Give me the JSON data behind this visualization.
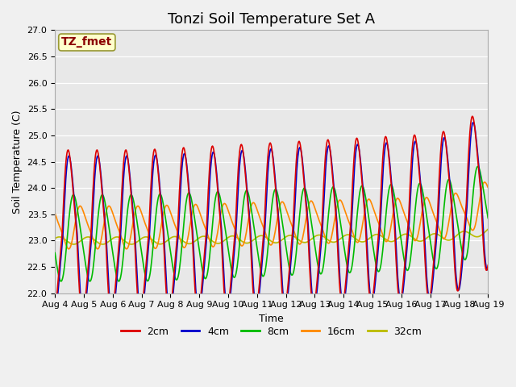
{
  "title": "Tonzi Soil Temperature Set A",
  "xlabel": "Time",
  "ylabel": "Soil Temperature (C)",
  "annotation": "TZ_fmet",
  "ylim": [
    22.0,
    27.0
  ],
  "yticks": [
    22.0,
    22.5,
    23.0,
    23.5,
    24.0,
    24.5,
    25.0,
    25.5,
    26.0,
    26.5,
    27.0
  ],
  "series_labels": [
    "2cm",
    "4cm",
    "8cm",
    "16cm",
    "32cm"
  ],
  "series_colors": [
    "#dd0000",
    "#0000cc",
    "#00bb00",
    "#ff8800",
    "#bbbb00"
  ],
  "x_tick_labels": [
    "Aug 4",
    "Aug 5",
    "Aug 6",
    "Aug 7",
    "Aug 8",
    "Aug 9",
    "Aug 10",
    "Aug 11",
    "Aug 12",
    "Aug 13",
    "Aug 14",
    "Aug 15",
    "Aug 16",
    "Aug 17",
    "Aug 18",
    "Aug 19"
  ],
  "fig_bg_color": "#f0f0f0",
  "plot_bg_color": "#e8e8e8",
  "title_fontsize": 13,
  "axis_fontsize": 9,
  "tick_fontsize": 8,
  "legend_fontsize": 9,
  "linewidth": 1.2
}
